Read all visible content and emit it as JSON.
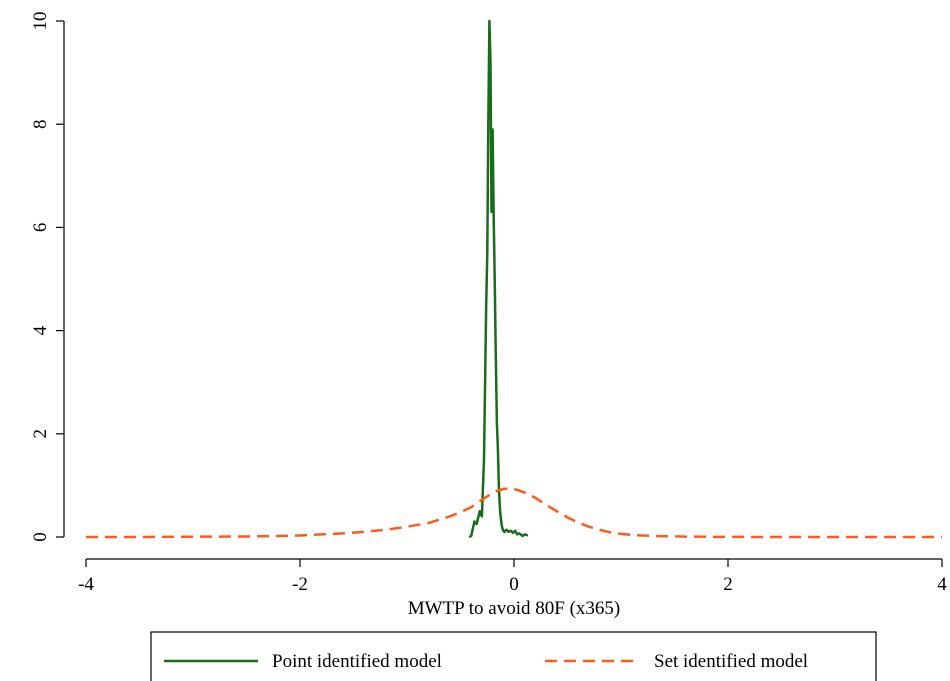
{
  "chart_data": {
    "type": "line",
    "title": "",
    "xlabel": "MWTP to avoid 80F (x365)",
    "ylabel": "",
    "xlim": [
      -4,
      4
    ],
    "ylim": [
      0,
      10
    ],
    "x_ticks": [
      -4,
      -2,
      0,
      2,
      4
    ],
    "y_ticks": [
      0,
      2,
      4,
      6,
      8,
      10
    ],
    "x_tick_labels": [
      "-4",
      "-2",
      "0",
      "2",
      "4"
    ],
    "y_tick_labels": [
      "0",
      "2",
      "4",
      "6",
      "8",
      "10"
    ],
    "grid": false,
    "legend_position": "bottom",
    "series": [
      {
        "name": "Point identified model",
        "color": "#1a6b1a",
        "style": "solid",
        "x": [
          -0.42,
          -0.4,
          -0.37,
          -0.35,
          -0.32,
          -0.3,
          -0.28,
          -0.26,
          -0.25,
          -0.24,
          -0.23,
          -0.22,
          -0.21,
          -0.2,
          -0.19,
          -0.18,
          -0.17,
          -0.16,
          -0.15,
          -0.14,
          -0.13,
          -0.12,
          -0.11,
          -0.1,
          -0.09,
          -0.07,
          -0.05,
          -0.03,
          -0.01,
          0.01,
          0.03,
          0.05,
          0.08,
          0.1,
          0.13
        ],
        "y": [
          0.0,
          0.02,
          0.3,
          0.25,
          0.5,
          0.4,
          1.5,
          4.5,
          5.5,
          8.0,
          10.0,
          9.2,
          6.3,
          7.9,
          6.2,
          5.0,
          3.5,
          2.2,
          1.7,
          0.9,
          0.5,
          0.3,
          0.18,
          0.12,
          0.1,
          0.14,
          0.1,
          0.12,
          0.08,
          0.12,
          0.05,
          0.07,
          0.02,
          0.05,
          0.03
        ]
      },
      {
        "name": "Set identified model",
        "color": "#ff5b1a",
        "style": "dashed",
        "x": [
          -4.0,
          -3.5,
          -3.0,
          -2.5,
          -2.0,
          -1.8,
          -1.6,
          -1.4,
          -1.2,
          -1.0,
          -0.8,
          -0.6,
          -0.5,
          -0.4,
          -0.3,
          -0.2,
          -0.15,
          -0.1,
          -0.05,
          0.0,
          0.05,
          0.1,
          0.2,
          0.3,
          0.4,
          0.5,
          0.6,
          0.7,
          0.8,
          0.9,
          1.0,
          1.1,
          1.2,
          1.4,
          1.6,
          1.8,
          2.0,
          2.5,
          3.0,
          3.5,
          4.0
        ],
        "y": [
          0.0,
          0.0,
          0.005,
          0.01,
          0.03,
          0.05,
          0.07,
          0.1,
          0.14,
          0.2,
          0.27,
          0.4,
          0.48,
          0.58,
          0.72,
          0.85,
          0.9,
          0.93,
          0.94,
          0.93,
          0.9,
          0.86,
          0.76,
          0.62,
          0.5,
          0.38,
          0.28,
          0.2,
          0.14,
          0.09,
          0.06,
          0.04,
          0.03,
          0.015,
          0.008,
          0.004,
          0.002,
          0.0,
          0.0,
          0.0,
          0.0
        ]
      }
    ]
  }
}
